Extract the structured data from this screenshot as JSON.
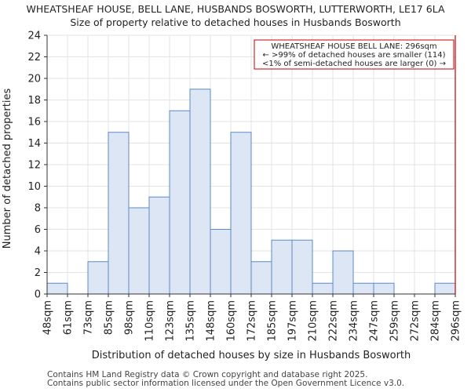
{
  "title": "WHEATSHEAF HOUSE, BELL LANE, HUSBANDS BOSWORTH, LUTTERWORTH, LE17 6LA",
  "subtitle": "Size of property relative to detached houses in Husbands Bosworth",
  "footer": {
    "line1": "Contains HM Land Registry data © Crown copyright and database right 2025.",
    "line2": "Contains public sector information licensed under the Open Government Licence v3.0."
  },
  "chart_data": {
    "type": "bar",
    "title": "WHEATSHEAF HOUSE, BELL LANE, HUSBANDS BOSWORTH, LUTTERWORTH, LE17 6LA",
    "subtitle": "Size of property relative to detached houses in Husbands Bosworth",
    "xlabel": "Distribution of detached houses by size in Husbands Bosworth",
    "ylabel": "Number of detached properties",
    "tick_labels": [
      "48sqm",
      "61sqm",
      "73sqm",
      "85sqm",
      "98sqm",
      "110sqm",
      "123sqm",
      "135sqm",
      "148sqm",
      "160sqm",
      "172sqm",
      "185sqm",
      "197sqm",
      "210sqm",
      "222sqm",
      "234sqm",
      "247sqm",
      "259sqm",
      "272sqm",
      "284sqm",
      "296sqm"
    ],
    "values": [
      1,
      0,
      3,
      15,
      8,
      9,
      17,
      19,
      6,
      15,
      3,
      5,
      5,
      1,
      4,
      1,
      1,
      0,
      0,
      1
    ],
    "ylim": [
      0,
      24
    ],
    "yticks": [
      0,
      2,
      4,
      6,
      8,
      10,
      12,
      14,
      16,
      18,
      20,
      22,
      24
    ],
    "grid": true,
    "bar_color": "#dce6f4",
    "bar_edge_color": "#5b8ac6",
    "marker": {
      "value_index": 20,
      "color": "#c00000"
    },
    "annotation": {
      "lines": [
        "WHEATSHEAF HOUSE BELL LANE: 296sqm",
        "← >99% of detached houses are smaller (114)",
        "<1% of semi-detached houses are larger (0) →"
      ],
      "border_color": "#c00000",
      "placement": "top-right"
    }
  }
}
